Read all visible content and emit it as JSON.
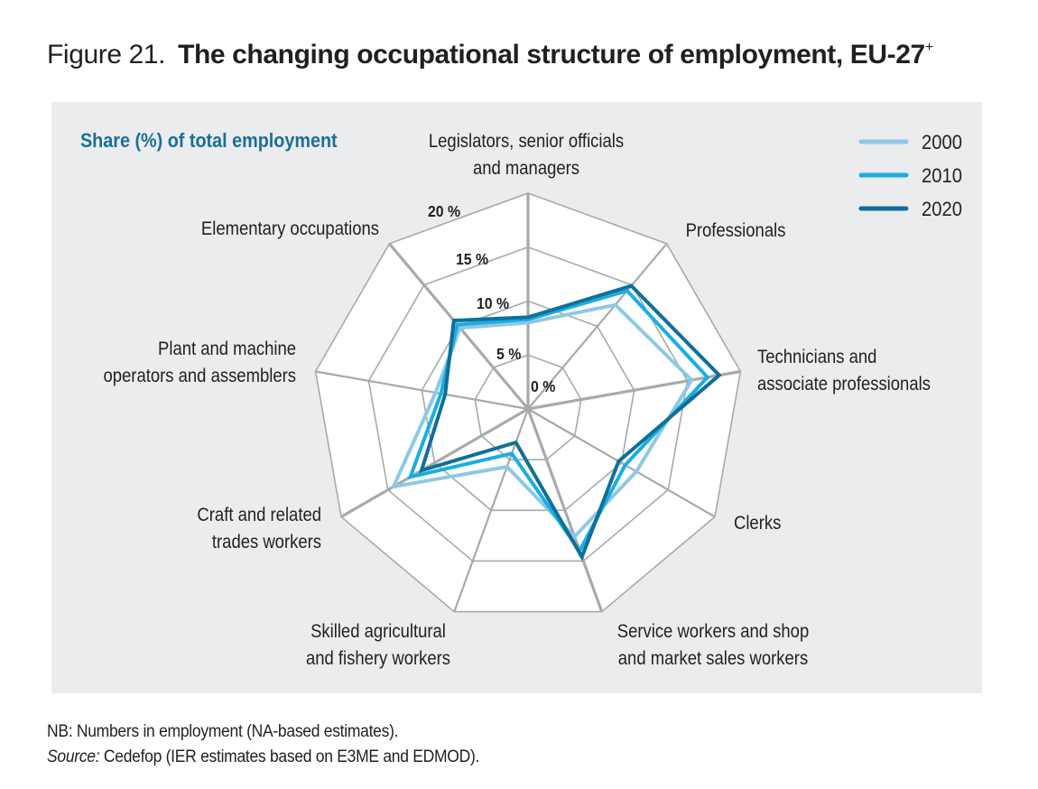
{
  "figure": {
    "number": "Figure 21.",
    "title": "The changing occupational structure of employment, EU-27",
    "title_superscript": "+"
  },
  "notes": {
    "nb": "NB: Numbers in employment (NA-based estimates).",
    "source_label": "Source:",
    "source_text": " Cedefop (IER estimates based on E3ME and EDMOD)."
  },
  "chart_data": {
    "type": "radar",
    "title": "Share (%) of total employment",
    "rlim": [
      0,
      20
    ],
    "r_ticks": [
      0,
      5,
      10,
      15,
      20
    ],
    "r_tick_labels": [
      "0 %",
      "5 %",
      "10 %",
      "15 %",
      "20 %"
    ],
    "grid": true,
    "legend_position": "top-right",
    "categories": [
      [
        "Legislators, senior officials",
        "and managers"
      ],
      [
        "Professionals"
      ],
      [
        "Technicians and",
        "associate professionals"
      ],
      [
        "Clerks"
      ],
      [
        "Service workers and shop",
        "and market sales workers"
      ],
      [
        "Skilled agricultural",
        "and fishery workers"
      ],
      [
        "Craft and related",
        "trades workers"
      ],
      [
        "Plant and machine",
        "operators and assemblers"
      ],
      [
        "Elementary occupations"
      ]
    ],
    "series": [
      {
        "name": "2000",
        "color": "#8ec8e6",
        "values": [
          8.0,
          12.6,
          15.4,
          11.6,
          12.6,
          5.7,
          14.4,
          8.7,
          9.8
        ]
      },
      {
        "name": "2010",
        "color": "#1aaee0",
        "values": [
          8.3,
          14.3,
          16.9,
          10.4,
          14.0,
          4.4,
          12.6,
          8.2,
          10.2
        ]
      },
      {
        "name": "2020",
        "color": "#0f6f98",
        "values": [
          8.5,
          14.9,
          18.0,
          9.7,
          14.6,
          3.3,
          11.4,
          7.8,
          10.7
        ]
      }
    ]
  }
}
